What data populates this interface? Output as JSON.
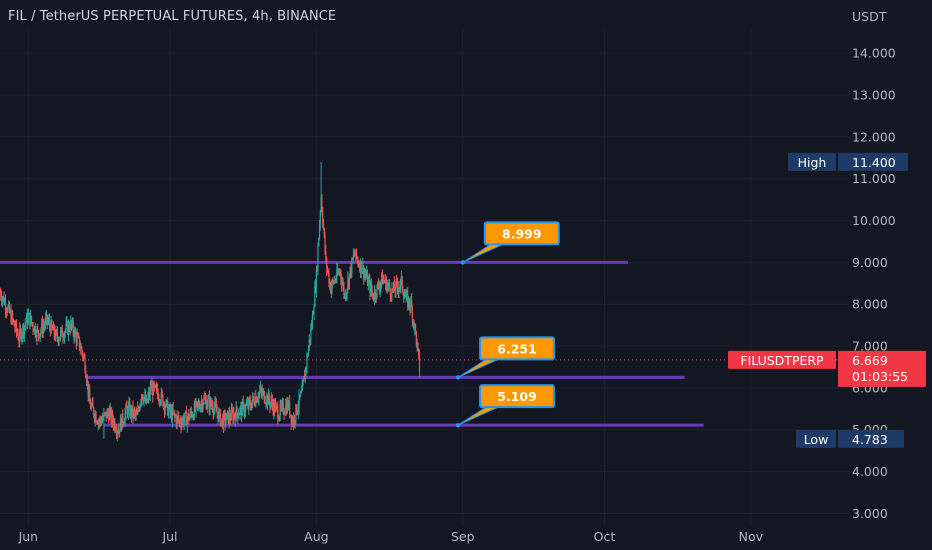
{
  "header": {
    "title": "FIL / TetherUS PERPETUAL FUTURES, 4h, BINANCE",
    "currency_label": "USDT"
  },
  "chart_data": {
    "type": "candlestick",
    "title": "FIL / TetherUS PERPETUAL FUTURES, 4h, BINANCE",
    "ylabel": "USDT",
    "ylim": [
      2.7,
      14.6
    ],
    "y_ticks": [
      "14.000",
      "13.000",
      "12.000",
      "11.000",
      "10.000",
      "9.000",
      "8.000",
      "7.000",
      "6.000",
      "5.000",
      "4.000",
      "3.000"
    ],
    "y_tick_values": [
      14,
      13,
      12,
      11,
      10,
      9,
      8,
      7,
      6,
      5,
      4,
      3
    ],
    "x_labels": [
      "Jun",
      "Jul",
      "Aug",
      "Sep",
      "Oct",
      "Nov"
    ],
    "x_label_days": [
      1,
      31,
      62,
      93,
      123,
      154
    ],
    "x_range_days": [
      -5,
      175
    ],
    "price_path": [
      {
        "x": -5,
        "y": 8.3
      },
      {
        "x": -3,
        "y": 7.8
      },
      {
        "x": -1,
        "y": 7.2
      },
      {
        "x": 1,
        "y": 7.7
      },
      {
        "x": 3,
        "y": 7.3
      },
      {
        "x": 5,
        "y": 7.6
      },
      {
        "x": 7,
        "y": 7.2
      },
      {
        "x": 10,
        "y": 7.5
      },
      {
        "x": 12,
        "y": 7.0
      },
      {
        "x": 13,
        "y": 6.6
      },
      {
        "x": 14,
        "y": 5.6
      },
      {
        "x": 15,
        "y": 5.4
      },
      {
        "x": 16,
        "y": 5.2
      },
      {
        "x": 18,
        "y": 5.4
      },
      {
        "x": 20,
        "y": 5.0
      },
      {
        "x": 22,
        "y": 5.5
      },
      {
        "x": 24,
        "y": 5.3
      },
      {
        "x": 25,
        "y": 5.9
      },
      {
        "x": 26,
        "y": 5.6
      },
      {
        "x": 27,
        "y": 6.0
      },
      {
        "x": 29,
        "y": 5.8
      },
      {
        "x": 31,
        "y": 5.4
      },
      {
        "x": 33,
        "y": 5.2
      },
      {
        "x": 35,
        "y": 5.3
      },
      {
        "x": 38,
        "y": 5.7
      },
      {
        "x": 40,
        "y": 5.6
      },
      {
        "x": 42,
        "y": 5.2
      },
      {
        "x": 45,
        "y": 5.4
      },
      {
        "x": 48,
        "y": 5.6
      },
      {
        "x": 50,
        "y": 5.9
      },
      {
        "x": 52,
        "y": 5.7
      },
      {
        "x": 54,
        "y": 5.4
      },
      {
        "x": 56,
        "y": 5.6
      },
      {
        "x": 57,
        "y": 5.2
      },
      {
        "x": 59,
        "y": 5.9
      },
      {
        "x": 61,
        "y": 7.5
      },
      {
        "x": 62,
        "y": 8.7
      },
      {
        "x": 63,
        "y": 10.6
      },
      {
        "x": 64,
        "y": 9.0
      },
      {
        "x": 65,
        "y": 8.4
      },
      {
        "x": 67,
        "y": 8.8
      },
      {
        "x": 68,
        "y": 8.2
      },
      {
        "x": 70,
        "y": 9.2
      },
      {
        "x": 72,
        "y": 8.8
      },
      {
        "x": 74,
        "y": 8.2
      },
      {
        "x": 76,
        "y": 8.6
      },
      {
        "x": 78,
        "y": 8.3
      },
      {
        "x": 80,
        "y": 8.5
      },
      {
        "x": 81,
        "y": 8.1
      },
      {
        "x": 82,
        "y": 8.0
      },
      {
        "x": 83,
        "y": 7.3
      },
      {
        "x": 84,
        "y": 6.3
      }
    ],
    "high": {
      "label": "High",
      "value": 11.4,
      "value_text": "11.400",
      "day": 63
    },
    "low": {
      "label": "Low",
      "value": 4.783,
      "value_text": "4.783",
      "day": 17
    },
    "levels": [
      {
        "value": 8.999,
        "label": "8.999",
        "x_start": -5,
        "x_end": 128,
        "anchor_day": 93
      },
      {
        "value": 6.251,
        "label": "6.251",
        "x_start": 13,
        "x_end": 140,
        "anchor_day": 92
      },
      {
        "value": 5.109,
        "label": "5.109",
        "x_start": 17,
        "x_end": 144,
        "anchor_day": 92
      }
    ],
    "current": {
      "symbol": "FILUSDTPERP",
      "price": 6.669,
      "price_text": "6.669",
      "countdown": "01:03:55"
    }
  },
  "colors": {
    "background": "#131722",
    "up": "#26a69a",
    "down": "#ef5350",
    "level_line": "#673ab7",
    "label_fill": "#ff9800",
    "label_border": "#2196f3",
    "current_price": "#f23645",
    "high_low_badge": "#1e3a66"
  }
}
